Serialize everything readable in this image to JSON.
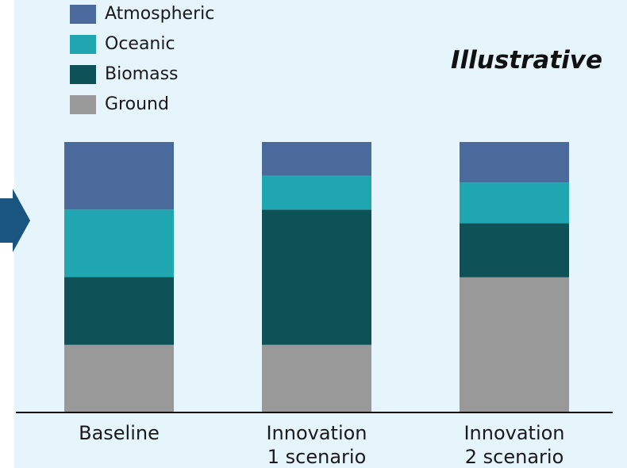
{
  "annotation": "Illustrative",
  "colors": {
    "atmospheric": "#4a6a9c",
    "oceanic": "#1fa6b0",
    "biomass": "#0e5157",
    "ground": "#999999",
    "arrow": "#1a5480",
    "panel": "#e6f4fb"
  },
  "icons": {
    "arrow": "right-arrow-icon"
  },
  "chart_data": {
    "type": "bar",
    "stacked": true,
    "categories": [
      [
        "Baseline"
      ],
      [
        "Innovation",
        "1 scenario"
      ],
      [
        "Innovation",
        "2 scenario"
      ]
    ],
    "series": [
      {
        "name": "Ground",
        "values": [
          25,
          25,
          50
        ]
      },
      {
        "name": "Biomass",
        "values": [
          25,
          50,
          20
        ]
      },
      {
        "name": "Oceanic",
        "values": [
          25,
          12.5,
          15
        ]
      },
      {
        "name": "Atmospheric",
        "values": [
          25,
          12.5,
          15
        ]
      }
    ],
    "legend": [
      "Atmospheric",
      "Oceanic",
      "Biomass",
      "Ground"
    ],
    "legend_position": "top-left",
    "ylim": [
      0,
      100
    ],
    "grid": false,
    "axes": "baseline-only"
  }
}
